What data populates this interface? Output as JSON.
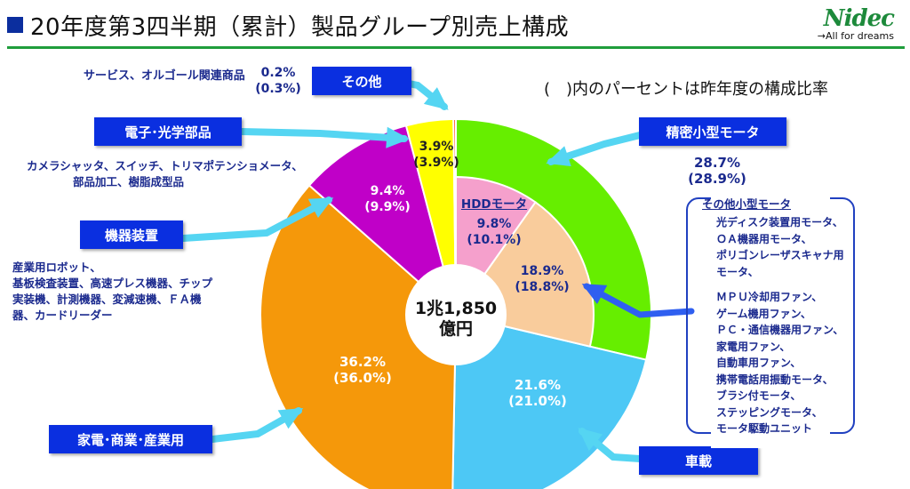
{
  "title": "20年度第3四半期（累計）製品グループ別売上構成",
  "logo": {
    "mark": "Nidec",
    "tagline": "All for dreams"
  },
  "note": "(　)内のパーセントは昨年度の構成比率",
  "center": {
    "line1": "1兆1,850",
    "line2": "億円"
  },
  "segments": {
    "precision_motors": "精密小型モータ",
    "automotive": "車載",
    "appliance": "家電･商業･産業用",
    "machinery": "機器装置",
    "electronic": "電子･光学部品",
    "others": "その他"
  },
  "descriptions": {
    "services": "サービス、オルゴール関連商品",
    "services_pct": "0.2%",
    "services_prev": "(0.3%)",
    "electronic": [
      "カメラシャッタ、スイッチ、トリマポテンショメータ、",
      "部品加工、樹脂成型品"
    ],
    "machinery": [
      "産業用ロボット、",
      "基板検査装置、高速プレス機器、チップ",
      "実装機、計測機器、変減速機、ＦＡ機",
      "器、カードリーダー"
    ]
  },
  "labels": {
    "hdd_name": "HDDモータ",
    "hdd": [
      "9.8%",
      "(10.1%)"
    ],
    "other_small": [
      "18.9%",
      "(18.8%)"
    ],
    "precision_total": [
      "28.7%",
      "(28.9%)"
    ],
    "automotive": [
      "21.6%",
      "(21.0%)"
    ],
    "appliance": [
      "36.2%",
      "(36.0%)"
    ],
    "machinery": [
      "9.4%",
      "(9.9%)"
    ],
    "others": [
      "3.9%",
      "(3.9%)"
    ]
  },
  "other_small_motors": {
    "title": "その他小型モータ",
    "items": [
      "光ディスク装置用モータ、",
      "ＯＡ機器用モータ、",
      "ポリゴンレーザスキャナ用",
      "モータ、",
      "ＭＰＵ冷却用ファン、",
      "ゲーム機用ファン、",
      "ＰＣ・通信機器用ファン、",
      "家電用ファン、",
      "自動車用ファン、",
      "携帯電話用振動モータ、",
      "ブラシ付モータ、",
      "ステッピングモータ、",
      "モータ駆動ユニット"
    ]
  },
  "chart_data": {
    "type": "pie",
    "total_label": "1兆1,850 億円",
    "outer_series": [
      {
        "name": "精密小型モータ",
        "value": 28.7,
        "previous": 28.9,
        "color": "#66ee00"
      },
      {
        "name": "車載",
        "value": 21.6,
        "previous": 21.0,
        "color": "#4dc8f5"
      },
      {
        "name": "家電･商業･産業用",
        "value": 36.2,
        "previous": 36.0,
        "color": "#f5980a"
      },
      {
        "name": "機器装置",
        "value": 9.4,
        "previous": 9.9,
        "color": "#c000c8"
      },
      {
        "name": "電子･光学部品",
        "value": 3.9,
        "previous": 3.9,
        "color": "#ffff00"
      },
      {
        "name": "その他",
        "value": 0.2,
        "previous": 0.3,
        "color": "#ff3300"
      }
    ],
    "inner_series": [
      {
        "name": "HDDモータ",
        "value": 9.8,
        "previous": 10.1,
        "color": "#f5a0cc"
      },
      {
        "name": "その他小型モータ",
        "value": 18.9,
        "previous": 18.8,
        "color": "#f9cc9c"
      }
    ]
  }
}
